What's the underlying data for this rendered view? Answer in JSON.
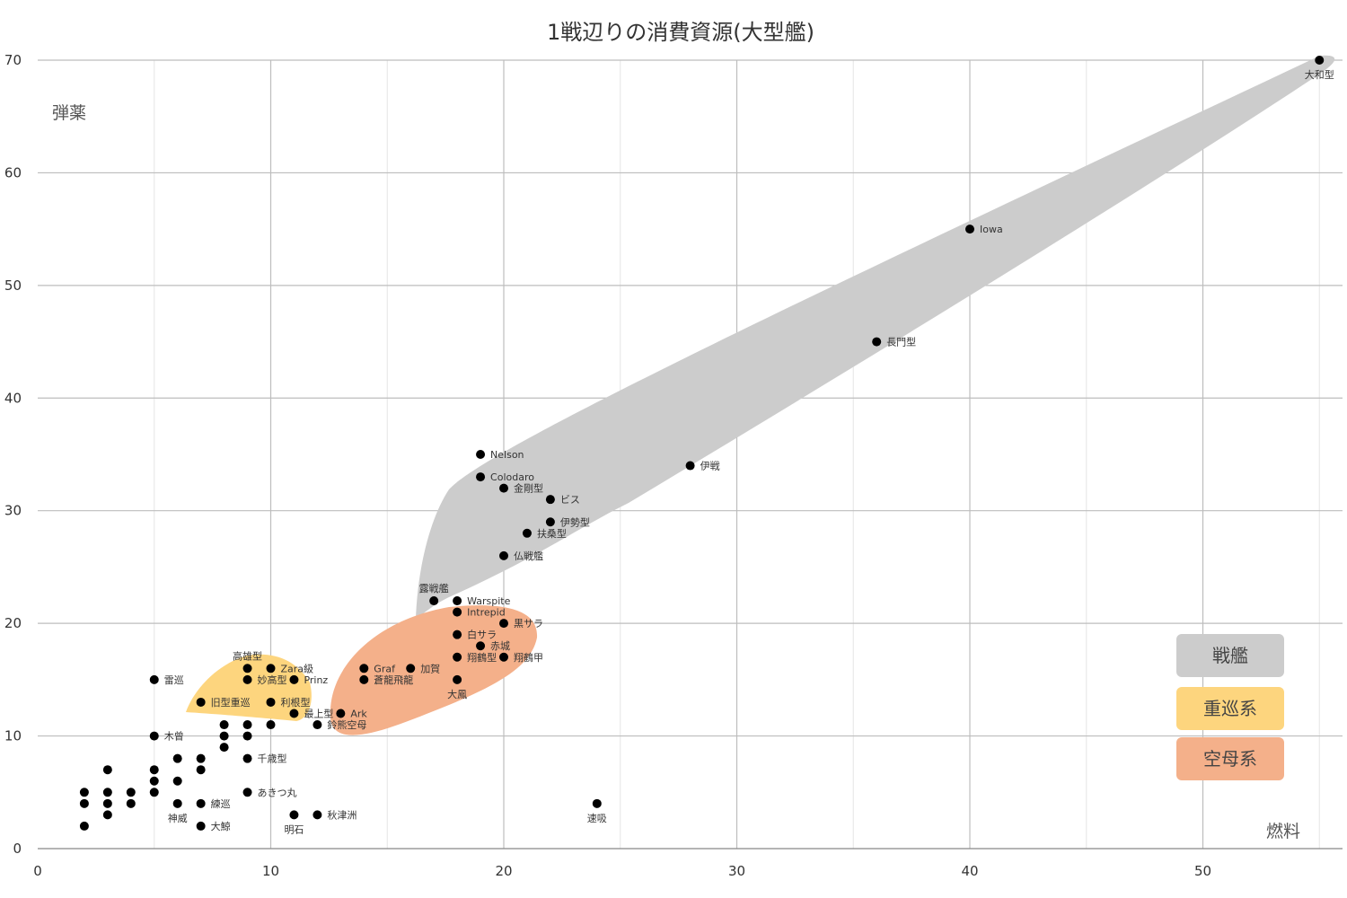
{
  "chart_data": {
    "type": "scatter",
    "title": "1戦辺りの消費資源(大型艦)",
    "xlabel": "燃料",
    "ylabel": "弾薬",
    "xlim": [
      0,
      56
    ],
    "ylim": [
      0,
      70
    ],
    "xticks": [
      0,
      10,
      20,
      30,
      40,
      50
    ],
    "yticks": [
      0,
      10,
      20,
      30,
      40,
      50,
      60,
      70
    ],
    "grid": true,
    "legend_position": "bottom-right",
    "groups": [
      {
        "name": "戦艦",
        "color": "#cccccc"
      },
      {
        "name": "重巡系",
        "color": "#fdd57e"
      },
      {
        "name": "空母系",
        "color": "#f4b08a"
      }
    ],
    "points": [
      {
        "x": 55,
        "y": 70,
        "label": "大和型"
      },
      {
        "x": 40,
        "y": 55,
        "label": "Iowa"
      },
      {
        "x": 36,
        "y": 45,
        "label": "長門型"
      },
      {
        "x": 28,
        "y": 34,
        "label": "伊戦"
      },
      {
        "x": 19,
        "y": 35,
        "label": "Nelson"
      },
      {
        "x": 19,
        "y": 33,
        "label": "Colodaro"
      },
      {
        "x": 20,
        "y": 32,
        "label": "金剛型"
      },
      {
        "x": 22,
        "y": 31,
        "label": "ビス"
      },
      {
        "x": 22,
        "y": 29,
        "label": "伊勢型"
      },
      {
        "x": 21,
        "y": 28,
        "label": "扶桑型"
      },
      {
        "x": 20,
        "y": 26,
        "label": "仏戦艦"
      },
      {
        "x": 17,
        "y": 22,
        "label": "露戦艦"
      },
      {
        "x": 18,
        "y": 22,
        "label": "Warspite"
      },
      {
        "x": 18,
        "y": 21,
        "label": "Intrepid"
      },
      {
        "x": 20,
        "y": 20,
        "label": "黒サラ"
      },
      {
        "x": 18,
        "y": 19,
        "label": "白サラ"
      },
      {
        "x": 19,
        "y": 18,
        "label": "赤城"
      },
      {
        "x": 18,
        "y": 17,
        "label": "翔鶴型"
      },
      {
        "x": 20,
        "y": 17,
        "label": "翔鶴甲"
      },
      {
        "x": 14,
        "y": 16,
        "label": "Graf"
      },
      {
        "x": 16,
        "y": 16,
        "label": "加賀"
      },
      {
        "x": 14,
        "y": 15,
        "label": "蒼龍飛龍"
      },
      {
        "x": 18,
        "y": 15,
        "label": "大鳳"
      },
      {
        "x": 13,
        "y": 12,
        "label": "Ark"
      },
      {
        "x": 12,
        "y": 11,
        "label": "鈴熊空母"
      },
      {
        "x": 11,
        "y": 12,
        "label": "最上型"
      },
      {
        "x": 9,
        "y": 16,
        "label": "高雄型"
      },
      {
        "x": 10,
        "y": 16,
        "label": "Zara級"
      },
      {
        "x": 9,
        "y": 15,
        "label": "妙高型"
      },
      {
        "x": 11,
        "y": 15,
        "label": "Prinz"
      },
      {
        "x": 7,
        "y": 13,
        "label": "旧型重巡"
      },
      {
        "x": 10,
        "y": 13,
        "label": "利根型"
      },
      {
        "x": 5,
        "y": 15,
        "label": "雷巡"
      },
      {
        "x": 5,
        "y": 10,
        "label": "木曾"
      },
      {
        "x": 9,
        "y": 8,
        "label": "千歳型"
      },
      {
        "x": 9,
        "y": 5,
        "label": "あきつ丸"
      },
      {
        "x": 7,
        "y": 4,
        "label": "練巡"
      },
      {
        "x": 6,
        "y": 4,
        "label": "神威"
      },
      {
        "x": 7,
        "y": 2,
        "label": "大鯨"
      },
      {
        "x": 11,
        "y": 3,
        "label": "明石"
      },
      {
        "x": 12,
        "y": 3,
        "label": "秋津洲"
      },
      {
        "x": 24,
        "y": 4,
        "label": "速吸"
      },
      {
        "x": 8,
        "y": 11,
        "label": ""
      },
      {
        "x": 9,
        "y": 11,
        "label": ""
      },
      {
        "x": 10,
        "y": 11,
        "label": ""
      },
      {
        "x": 8,
        "y": 10,
        "label": ""
      },
      {
        "x": 9,
        "y": 10,
        "label": ""
      },
      {
        "x": 8,
        "y": 9,
        "label": ""
      },
      {
        "x": 6,
        "y": 8,
        "label": ""
      },
      {
        "x": 7,
        "y": 8,
        "label": ""
      },
      {
        "x": 7,
        "y": 7,
        "label": ""
      },
      {
        "x": 3,
        "y": 7,
        "label": ""
      },
      {
        "x": 5,
        "y": 7,
        "label": ""
      },
      {
        "x": 5,
        "y": 6,
        "label": ""
      },
      {
        "x": 6,
        "y": 6,
        "label": ""
      },
      {
        "x": 2,
        "y": 5,
        "label": ""
      },
      {
        "x": 3,
        "y": 5,
        "label": ""
      },
      {
        "x": 4,
        "y": 5,
        "label": ""
      },
      {
        "x": 5,
        "y": 5,
        "label": ""
      },
      {
        "x": 2,
        "y": 4,
        "label": ""
      },
      {
        "x": 3,
        "y": 4,
        "label": ""
      },
      {
        "x": 4,
        "y": 4,
        "label": ""
      },
      {
        "x": 3,
        "y": 3,
        "label": ""
      },
      {
        "x": 2,
        "y": 2,
        "label": ""
      }
    ]
  }
}
